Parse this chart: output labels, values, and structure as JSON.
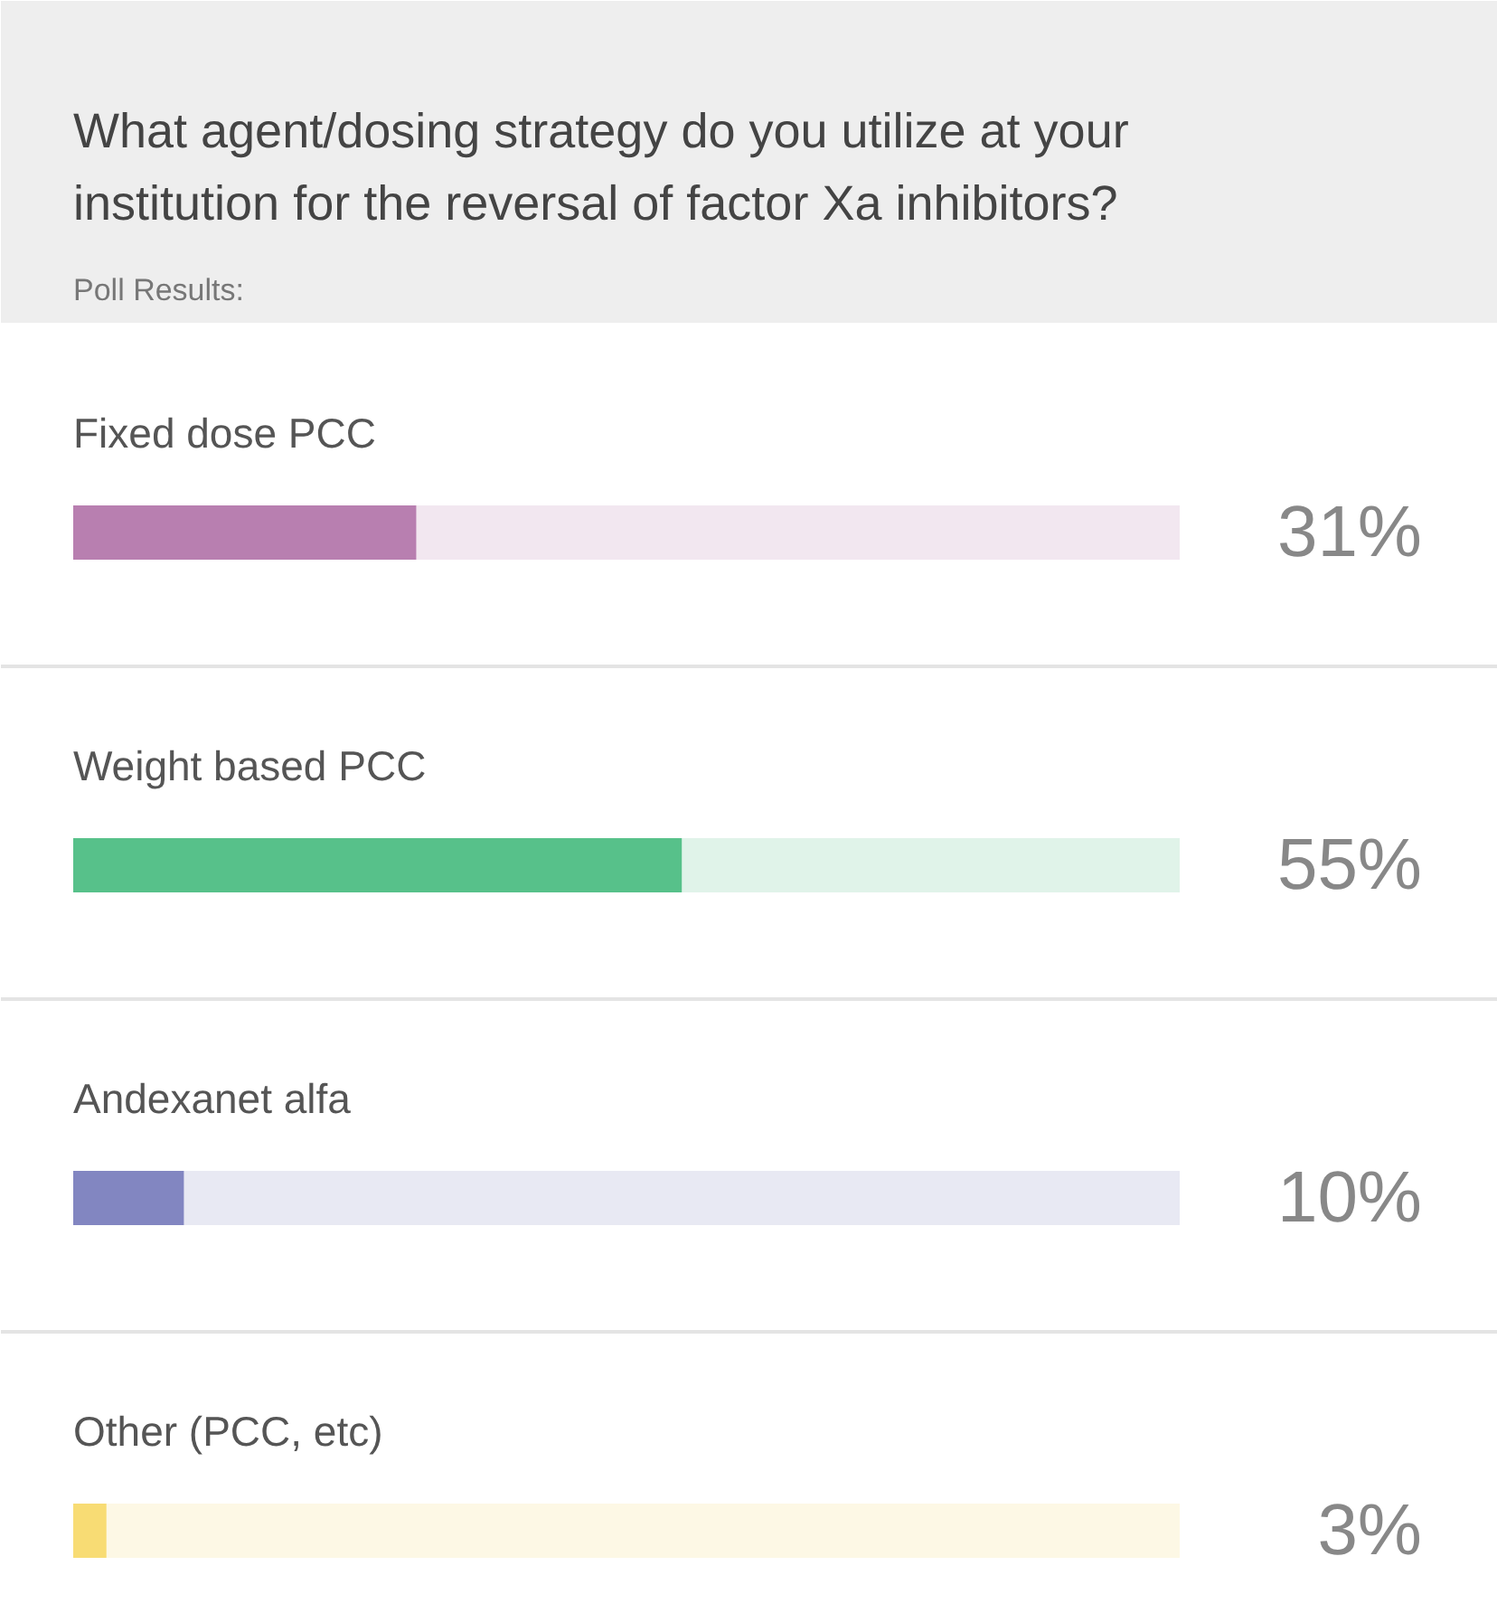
{
  "chart_data": {
    "type": "bar",
    "orientation": "horizontal",
    "title": "What agent/dosing strategy do you utilize at your institution for the reversal of factor Xa inhibitors?",
    "subtitle": "Poll Results:",
    "categories": [
      "Fixed dose PCC",
      "Weight based PCC",
      "Andexanet alfa",
      "Other (PCC, etc)"
    ],
    "values": [
      31,
      55,
      10,
      3
    ],
    "colors": [
      "#b87fb0",
      "#57c18a",
      "#8286c1",
      "#f8dc74"
    ],
    "value_labels": [
      "31%",
      "55%",
      "10%",
      "3%"
    ]
  }
}
